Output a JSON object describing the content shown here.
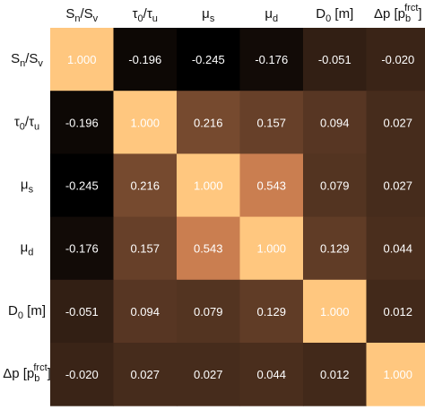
{
  "chart_data": {
    "type": "heatmap",
    "title": "",
    "xlabel": "",
    "ylabel": "",
    "colormap": "copper",
    "vmin": -0.245,
    "vmax": 1.0,
    "labels": [
      {
        "base": "S",
        "sub": "n",
        "sep": "/",
        "base2": "S",
        "sub2": "v"
      },
      {
        "base": "τ",
        "sub": "0",
        "sep": "/",
        "base2": "τ",
        "sub2": "u"
      },
      {
        "base": "μ",
        "sub": "s"
      },
      {
        "base": "μ",
        "sub": "d"
      },
      {
        "base": "D",
        "sub": "0",
        "unit": " [m]"
      },
      {
        "base": "Δp [p",
        "sub": "b",
        "sup": "frct",
        "unit": "]"
      }
    ],
    "values": [
      [
        1.0,
        -0.196,
        -0.245,
        -0.176,
        -0.051,
        -0.02
      ],
      [
        -0.196,
        1.0,
        0.216,
        0.157,
        0.094,
        0.027
      ],
      [
        -0.245,
        0.216,
        1.0,
        0.543,
        0.079,
        0.027
      ],
      [
        -0.176,
        0.157,
        0.543,
        1.0,
        0.129,
        0.044
      ],
      [
        -0.051,
        0.094,
        0.079,
        0.129,
        1.0,
        0.012
      ],
      [
        -0.02,
        0.027,
        0.027,
        0.044,
        0.012,
        1.0
      ]
    ],
    "display": [
      [
        "1.000",
        "-0.196",
        "-0.245",
        "-0.176",
        "-0.051",
        "-0.020"
      ],
      [
        "-0.196",
        "1.000",
        "0.216",
        "0.157",
        "0.094",
        "0.027"
      ],
      [
        "-0.245",
        "0.216",
        "1.000",
        "0.543",
        "0.079",
        "0.027"
      ],
      [
        "-0.176",
        "0.157",
        "0.543",
        "1.000",
        "0.129",
        "0.044"
      ],
      [
        "-0.051",
        "0.094",
        "0.079",
        "0.129",
        "1.000",
        "0.012"
      ],
      [
        "-0.020",
        "0.027",
        "0.027",
        "0.044",
        "0.012",
        "1.000"
      ]
    ]
  }
}
